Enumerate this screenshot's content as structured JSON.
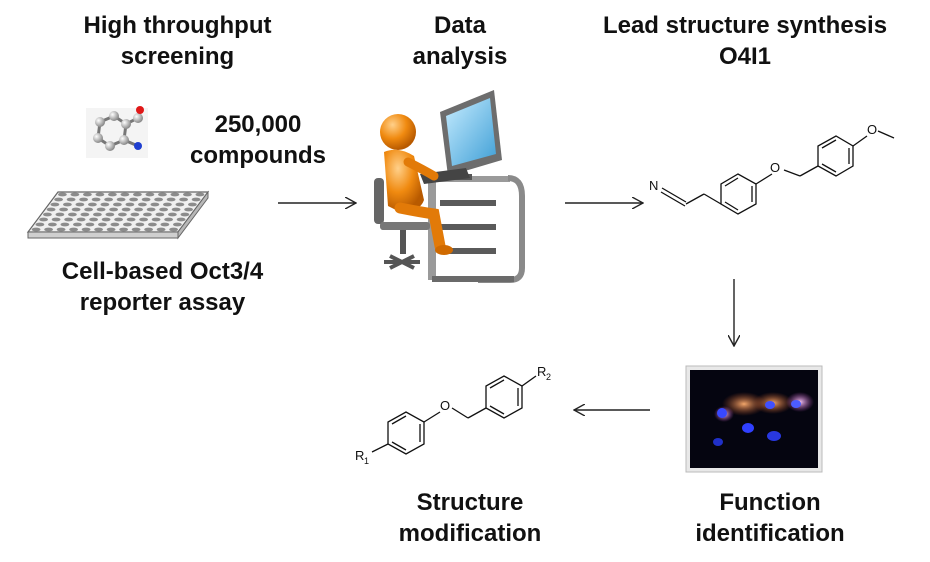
{
  "steps": {
    "screening": {
      "title_lines": [
        "High throughput",
        "screening"
      ]
    },
    "analysis": {
      "title_lines": [
        "Data",
        "analysis"
      ]
    },
    "synthesis": {
      "title_lines": [
        "Lead structure synthesis",
        "O4I1"
      ]
    },
    "function": {
      "title_lines": [
        "Function",
        "identification"
      ]
    },
    "modification": {
      "title_lines": [
        "Structure",
        "modification"
      ]
    }
  },
  "compounds": {
    "lines": [
      "250,000",
      "compounds"
    ]
  },
  "assay": {
    "lines": [
      "Cell-based Oct3/4",
      "reporter assay"
    ]
  },
  "lead_structure": {
    "atoms": {
      "nitrile_n": "N",
      "ether_o": "O"
    }
  },
  "modified_structure": {
    "atoms": {
      "ether_o": "O",
      "r1": "R",
      "r1_sub": "1",
      "r2": "R",
      "r2_sub": "2"
    }
  },
  "colors": {
    "text": "#111111",
    "arrow": "#222222",
    "figure": "#f08a10",
    "monitor_screen": "#7ec8ee"
  },
  "icons": [
    "molecule-ball-model-icon",
    "well-plate-icon",
    "person-at-computer-icon",
    "fluorescence-microscopy-image"
  ]
}
